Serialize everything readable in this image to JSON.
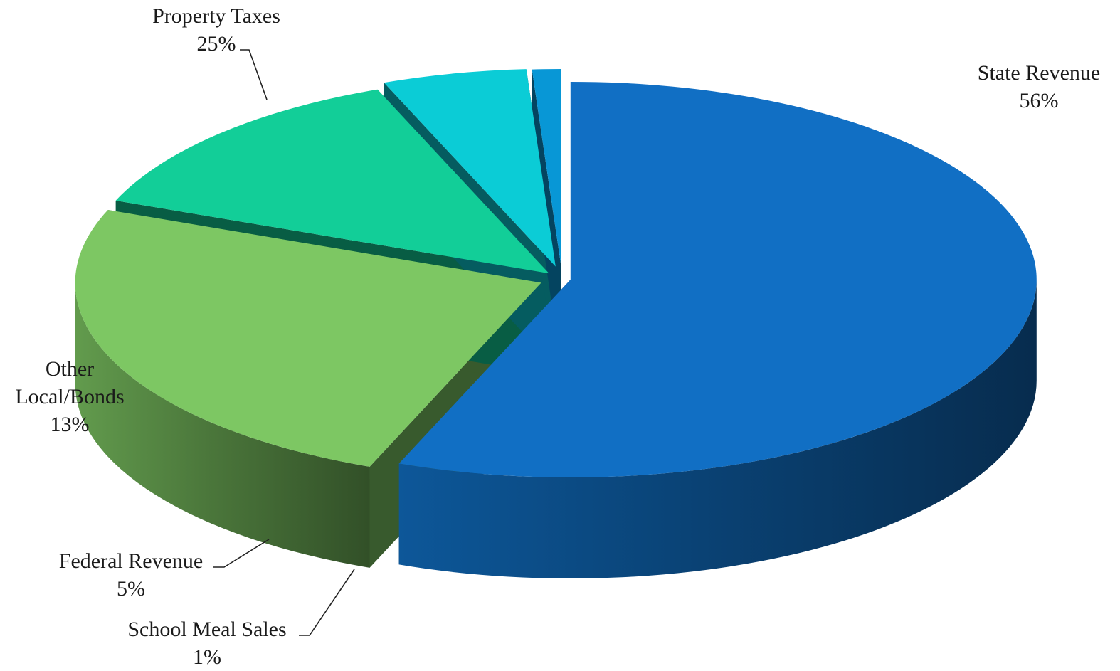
{
  "chart_data": {
    "type": "pie",
    "style": "3d-exploded",
    "categories": [
      "State Revenue",
      "Property Taxes",
      "Other Local/Bonds",
      "Federal Revenue",
      "School Meal Sales"
    ],
    "values": [
      56,
      25,
      13,
      5,
      1
    ],
    "data_labels": [
      "56%",
      "25%",
      "13%",
      "5%",
      "1%"
    ],
    "colors": {
      "State Revenue": "#116FC4",
      "Property Taxes": "#7DC763",
      "Other Local/Bonds": "#12CE98",
      "Federal Revenue": "#0BCCD6",
      "School Meal Sales": "#0897D6"
    },
    "title": "",
    "legend": "none"
  }
}
